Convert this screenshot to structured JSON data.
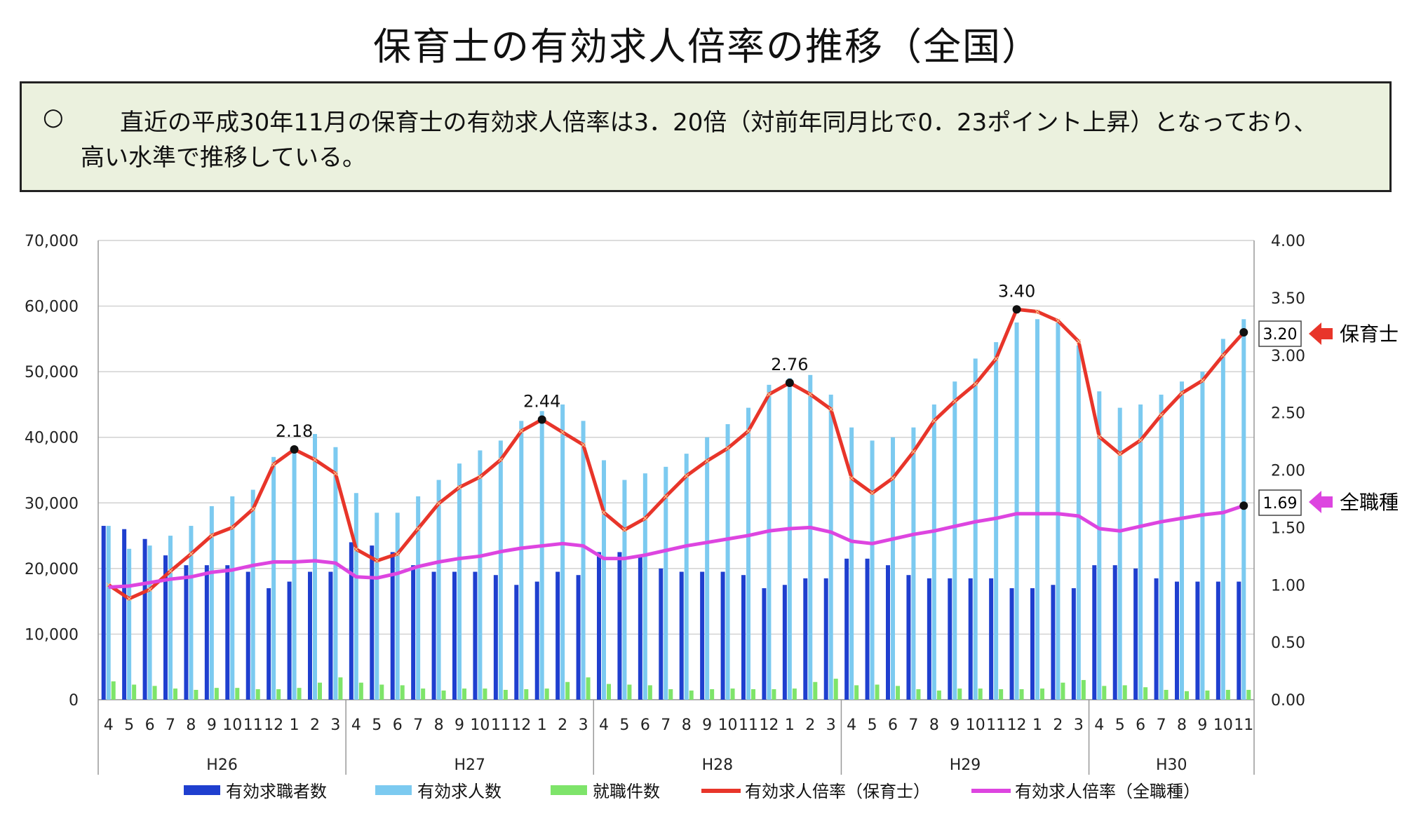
{
  "title": "保育士の有効求人倍率の推移（全国）",
  "summary": {
    "bullet": "○",
    "line1": "直近の平成30年11月の保育士の有効求人倍率は3．20倍（対前年同月比で0．23ポイント上昇）となっており、",
    "line2": "高い水準で推移している。"
  },
  "colors": {
    "job_seekers": "#1f3fcf",
    "job_openings": "#7ccaf0",
    "placements": "#7ee46a",
    "ratio_hoikushi": "#e8352a",
    "ratio_all": "#dd45e0",
    "summary_bg": "#ebf1de"
  },
  "callouts": {
    "hoikushi": {
      "value": "3.20",
      "label": "保育士"
    },
    "all": {
      "value": "1.69",
      "label": "全職種"
    }
  },
  "chart_data": {
    "type": "bar+line",
    "left_axis": {
      "min": 0,
      "max": 70000,
      "ticks": [
        "70,000",
        "60,000",
        "50,000",
        "40,000",
        "30,000",
        "20,000",
        "10,000",
        "0"
      ]
    },
    "right_axis": {
      "min": 0,
      "max": 4.0,
      "ticks": [
        "4.00",
        "3.50",
        "3.00",
        "2.50",
        "2.00",
        "1.50",
        "1.00",
        "0.50",
        "0.00"
      ]
    },
    "months": [
      "4",
      "5",
      "6",
      "7",
      "8",
      "9",
      "10",
      "11",
      "12",
      "1",
      "2",
      "3",
      "4",
      "5",
      "6",
      "7",
      "8",
      "9",
      "10",
      "11",
      "12",
      "1",
      "2",
      "3",
      "4",
      "5",
      "6",
      "7",
      "8",
      "9",
      "10",
      "11",
      "12",
      "1",
      "2",
      "3",
      "4",
      "5",
      "6",
      "7",
      "8",
      "9",
      "10",
      "11",
      "12",
      "1",
      "2",
      "3",
      "4",
      "5",
      "6",
      "7",
      "8",
      "9",
      "10",
      "11"
    ],
    "years": [
      {
        "label": "H26",
        "count": 12
      },
      {
        "label": "H27",
        "count": 12
      },
      {
        "label": "H28",
        "count": 12
      },
      {
        "label": "H29",
        "count": 12
      },
      {
        "label": "H30",
        "count": 8
      }
    ],
    "series": [
      {
        "name": "有効求職者数",
        "kind": "bar",
        "axis": "left",
        "values": [
          26500,
          26000,
          24500,
          22000,
          20500,
          20500,
          20500,
          19500,
          17000,
          18000,
          19500,
          19500,
          24000,
          23500,
          22500,
          20500,
          19500,
          19500,
          19500,
          19000,
          17500,
          18000,
          19500,
          19000,
          22500,
          22500,
          22000,
          20000,
          19500,
          19500,
          19500,
          19000,
          17000,
          17500,
          18500,
          18500,
          21500,
          21500,
          20500,
          19000,
          18500,
          18500,
          18500,
          18500,
          17000,
          17000,
          17500,
          17000,
          20500,
          20500,
          20000,
          18500,
          18000,
          18000,
          18000,
          18000
        ]
      },
      {
        "name": "有効求人数",
        "kind": "bar",
        "axis": "left",
        "values": [
          26500,
          23000,
          23500,
          25000,
          26500,
          29500,
          31000,
          32000,
          37000,
          38500,
          40500,
          38500,
          31500,
          28500,
          28500,
          31000,
          33500,
          36000,
          38000,
          39500,
          42500,
          44000,
          45000,
          42500,
          36500,
          33500,
          34500,
          35500,
          37500,
          40000,
          42000,
          44500,
          48000,
          49000,
          49500,
          46500,
          41500,
          39500,
          40000,
          41500,
          45000,
          48500,
          52000,
          54500,
          57500,
          58000,
          57500,
          54000,
          47000,
          44500,
          45000,
          46500,
          48500,
          50000,
          55000,
          58000
        ]
      },
      {
        "name": "就職件数",
        "kind": "bar",
        "axis": "left",
        "values": [
          2800,
          2300,
          2100,
          1700,
          1500,
          1800,
          1800,
          1600,
          1600,
          1800,
          2600,
          3400,
          2600,
          2300,
          2200,
          1700,
          1400,
          1700,
          1700,
          1500,
          1600,
          1700,
          2700,
          3400,
          2400,
          2300,
          2200,
          1600,
          1400,
          1600,
          1700,
          1600,
          1600,
          1700,
          2700,
          3200,
          2200,
          2300,
          2100,
          1600,
          1400,
          1700,
          1700,
          1600,
          1600,
          1700,
          2600,
          3000,
          2100,
          2200,
          1900,
          1500,
          1300,
          1400,
          1500,
          1500
        ]
      },
      {
        "name": "有効求人倍率（保育士）",
        "kind": "line",
        "axis": "right",
        "values": [
          1.0,
          0.88,
          0.96,
          1.12,
          1.27,
          1.43,
          1.5,
          1.66,
          2.05,
          2.18,
          2.09,
          1.97,
          1.31,
          1.21,
          1.27,
          1.49,
          1.71,
          1.85,
          1.94,
          2.09,
          2.34,
          2.44,
          2.33,
          2.22,
          1.63,
          1.48,
          1.58,
          1.77,
          1.95,
          2.08,
          2.19,
          2.34,
          2.66,
          2.76,
          2.66,
          2.53,
          1.93,
          1.8,
          1.93,
          2.16,
          2.43,
          2.6,
          2.75,
          2.97,
          3.4,
          3.38,
          3.3,
          3.12,
          2.29,
          2.14,
          2.26,
          2.48,
          2.67,
          2.78,
          3.0,
          3.2
        ]
      },
      {
        "name": "有効求人倍率（全職種）",
        "kind": "line",
        "axis": "right",
        "values": [
          0.98,
          0.99,
          1.02,
          1.05,
          1.07,
          1.11,
          1.13,
          1.17,
          1.2,
          1.2,
          1.21,
          1.19,
          1.07,
          1.06,
          1.1,
          1.16,
          1.2,
          1.23,
          1.25,
          1.29,
          1.32,
          1.34,
          1.36,
          1.34,
          1.23,
          1.23,
          1.26,
          1.3,
          1.34,
          1.37,
          1.4,
          1.43,
          1.47,
          1.49,
          1.5,
          1.46,
          1.38,
          1.36,
          1.4,
          1.44,
          1.47,
          1.51,
          1.55,
          1.58,
          1.62,
          1.62,
          1.62,
          1.6,
          1.49,
          1.47,
          1.51,
          1.55,
          1.58,
          1.61,
          1.63,
          1.69
        ]
      }
    ],
    "peak_labels": [
      {
        "index": 9,
        "label": "2.18"
      },
      {
        "index": 21,
        "label": "2.44"
      },
      {
        "index": 33,
        "label": "2.76"
      },
      {
        "index": 44,
        "label": "3.40"
      }
    ],
    "legend": [
      "有効求職者数",
      "有効求人数",
      "就職件数",
      "有効求人倍率（保育士）",
      "有効求人倍率（全職種）"
    ],
    "legend_position": "bottom"
  }
}
